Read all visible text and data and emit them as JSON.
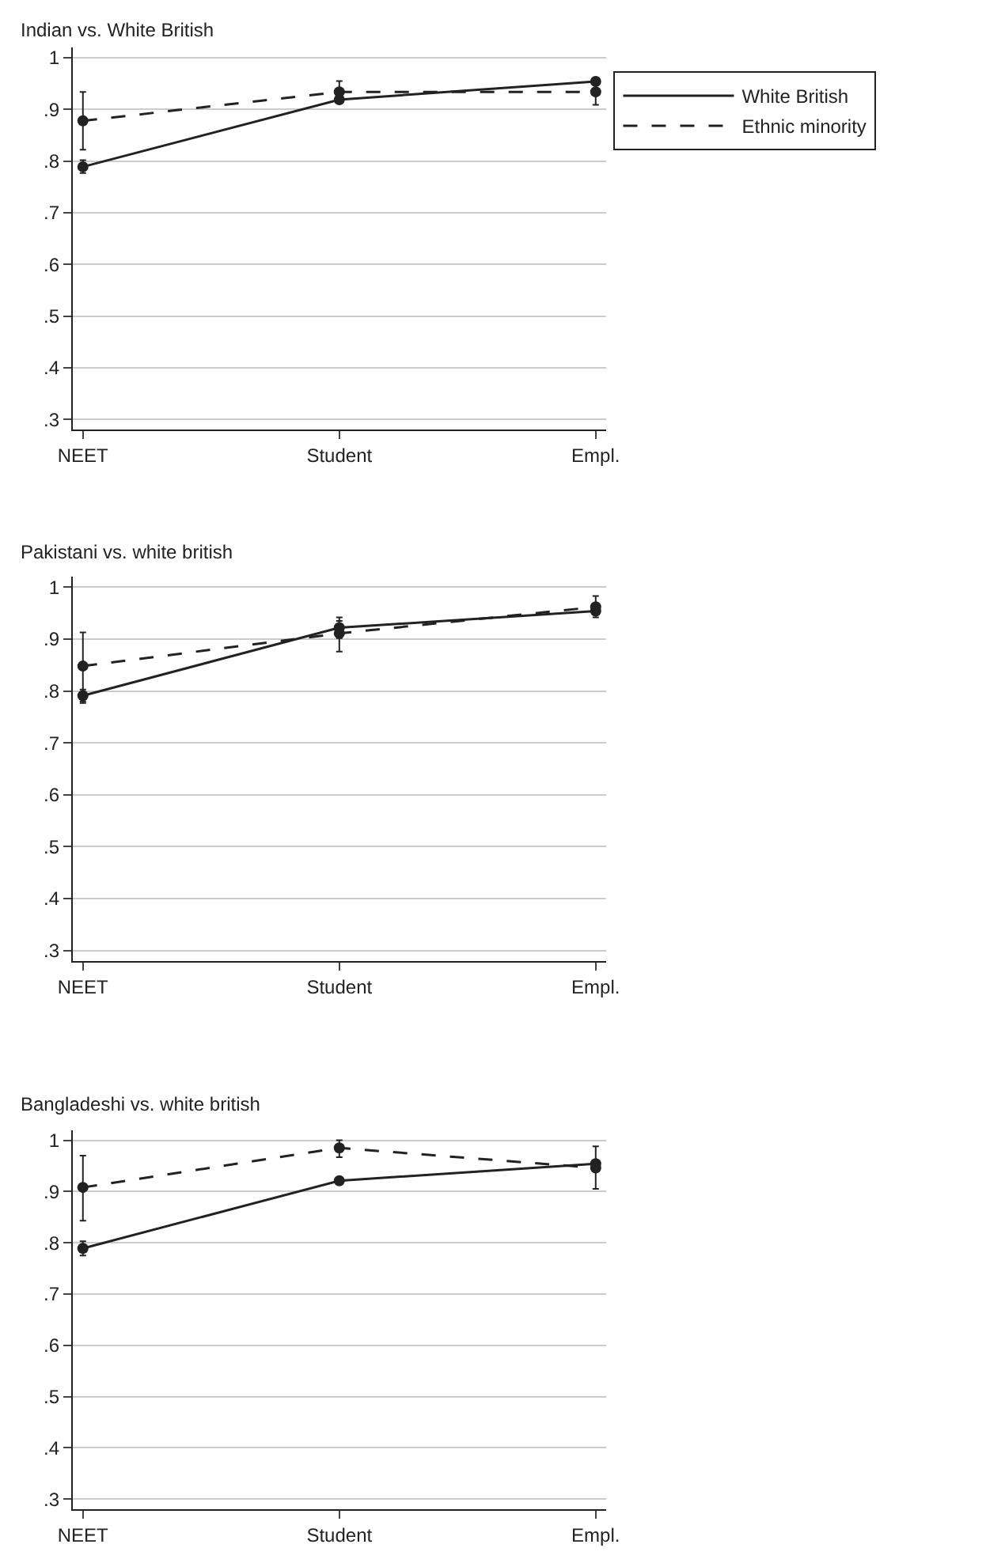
{
  "chart_data": [
    {
      "type": "line",
      "title": "Indian vs. White British",
      "categories": [
        "NEET",
        "Student",
        "Empl."
      ],
      "ylim": [
        0.28,
        1.02
      ],
      "yticks": [
        {
          "value": 0.3,
          "label": ".3"
        },
        {
          "value": 0.4,
          "label": ".4"
        },
        {
          "value": 0.5,
          "label": ".5"
        },
        {
          "value": 0.6,
          "label": ".6"
        },
        {
          "value": 0.7,
          "label": ".7"
        },
        {
          "value": 0.8,
          "label": ".8"
        },
        {
          "value": 0.9,
          "label": ".9"
        },
        1
      ],
      "grid": "y",
      "legend": "right",
      "marker": "circle",
      "series": [
        {
          "name": "White British",
          "color": "#222222",
          "line_style": "solid",
          "values": [
            0.789,
            0.919,
            0.954
          ],
          "errors": [
            [
              0.777,
              0.802
            ],
            null,
            null
          ]
        },
        {
          "name": "Ethnic minority",
          "color": "#222222",
          "line_style": "dashed",
          "values": [
            0.878,
            0.934,
            0.934
          ],
          "errors": [
            [
              0.822,
              0.934
            ],
            [
              0.914,
              0.955
            ],
            [
              0.909,
              0.955
            ]
          ]
        }
      ]
    },
    {
      "type": "line",
      "title": "Pakistani vs. white british",
      "categories": [
        "NEET",
        "Student",
        "Empl."
      ],
      "ylim": [
        0.28,
        1.02
      ],
      "yticks": [
        {
          "value": 0.3,
          "label": ".3"
        },
        {
          "value": 0.4,
          "label": ".4"
        },
        {
          "value": 0.5,
          "label": ".5"
        },
        {
          "value": 0.6,
          "label": ".6"
        },
        {
          "value": 0.7,
          "label": ".7"
        },
        {
          "value": 0.8,
          "label": ".8"
        },
        {
          "value": 0.9,
          "label": ".9"
        },
        1
      ],
      "grid": "y",
      "marker": "circle",
      "series": [
        {
          "color": "#222222",
          "line_style": "solid",
          "values": [
            0.791,
            0.922,
            0.954
          ],
          "errors": [
            [
              0.777,
              0.803
            ],
            [
              0.902,
              0.942
            ],
            null
          ]
        },
        {
          "color": "#222222",
          "line_style": "dashed",
          "values": [
            0.848,
            0.911,
            0.962
          ],
          "errors": [
            [
              0.78,
              0.913
            ],
            [
              0.876,
              0.935
            ],
            [
              0.942,
              0.983
            ]
          ]
        }
      ]
    },
    {
      "type": "line",
      "title": "Bangladeshi vs. white british",
      "categories": [
        "NEET",
        "Student",
        "Empl."
      ],
      "ylim": [
        0.28,
        1.02
      ],
      "yticks": [
        {
          "value": 0.3,
          "label": ".3"
        },
        {
          "value": 0.4,
          "label": ".4"
        },
        {
          "value": 0.5,
          "label": ".5"
        },
        {
          "value": 0.6,
          "label": ".6"
        },
        {
          "value": 0.7,
          "label": ".7"
        },
        {
          "value": 0.8,
          "label": ".8"
        },
        {
          "value": 0.9,
          "label": ".9"
        },
        1
      ],
      "grid": "y",
      "marker": "circle",
      "series": [
        {
          "color": "#222222",
          "line_style": "solid",
          "values": [
            0.789,
            0.921,
            0.954
          ],
          "errors": [
            [
              0.775,
              0.803
            ],
            null,
            null
          ]
        },
        {
          "color": "#222222",
          "line_style": "dashed",
          "values": [
            0.908,
            0.985,
            0.946
          ],
          "errors": [
            [
              0.843,
              0.97
            ],
            [
              0.967,
              1.0
            ],
            [
              0.905,
              0.988
            ]
          ]
        }
      ]
    }
  ]
}
